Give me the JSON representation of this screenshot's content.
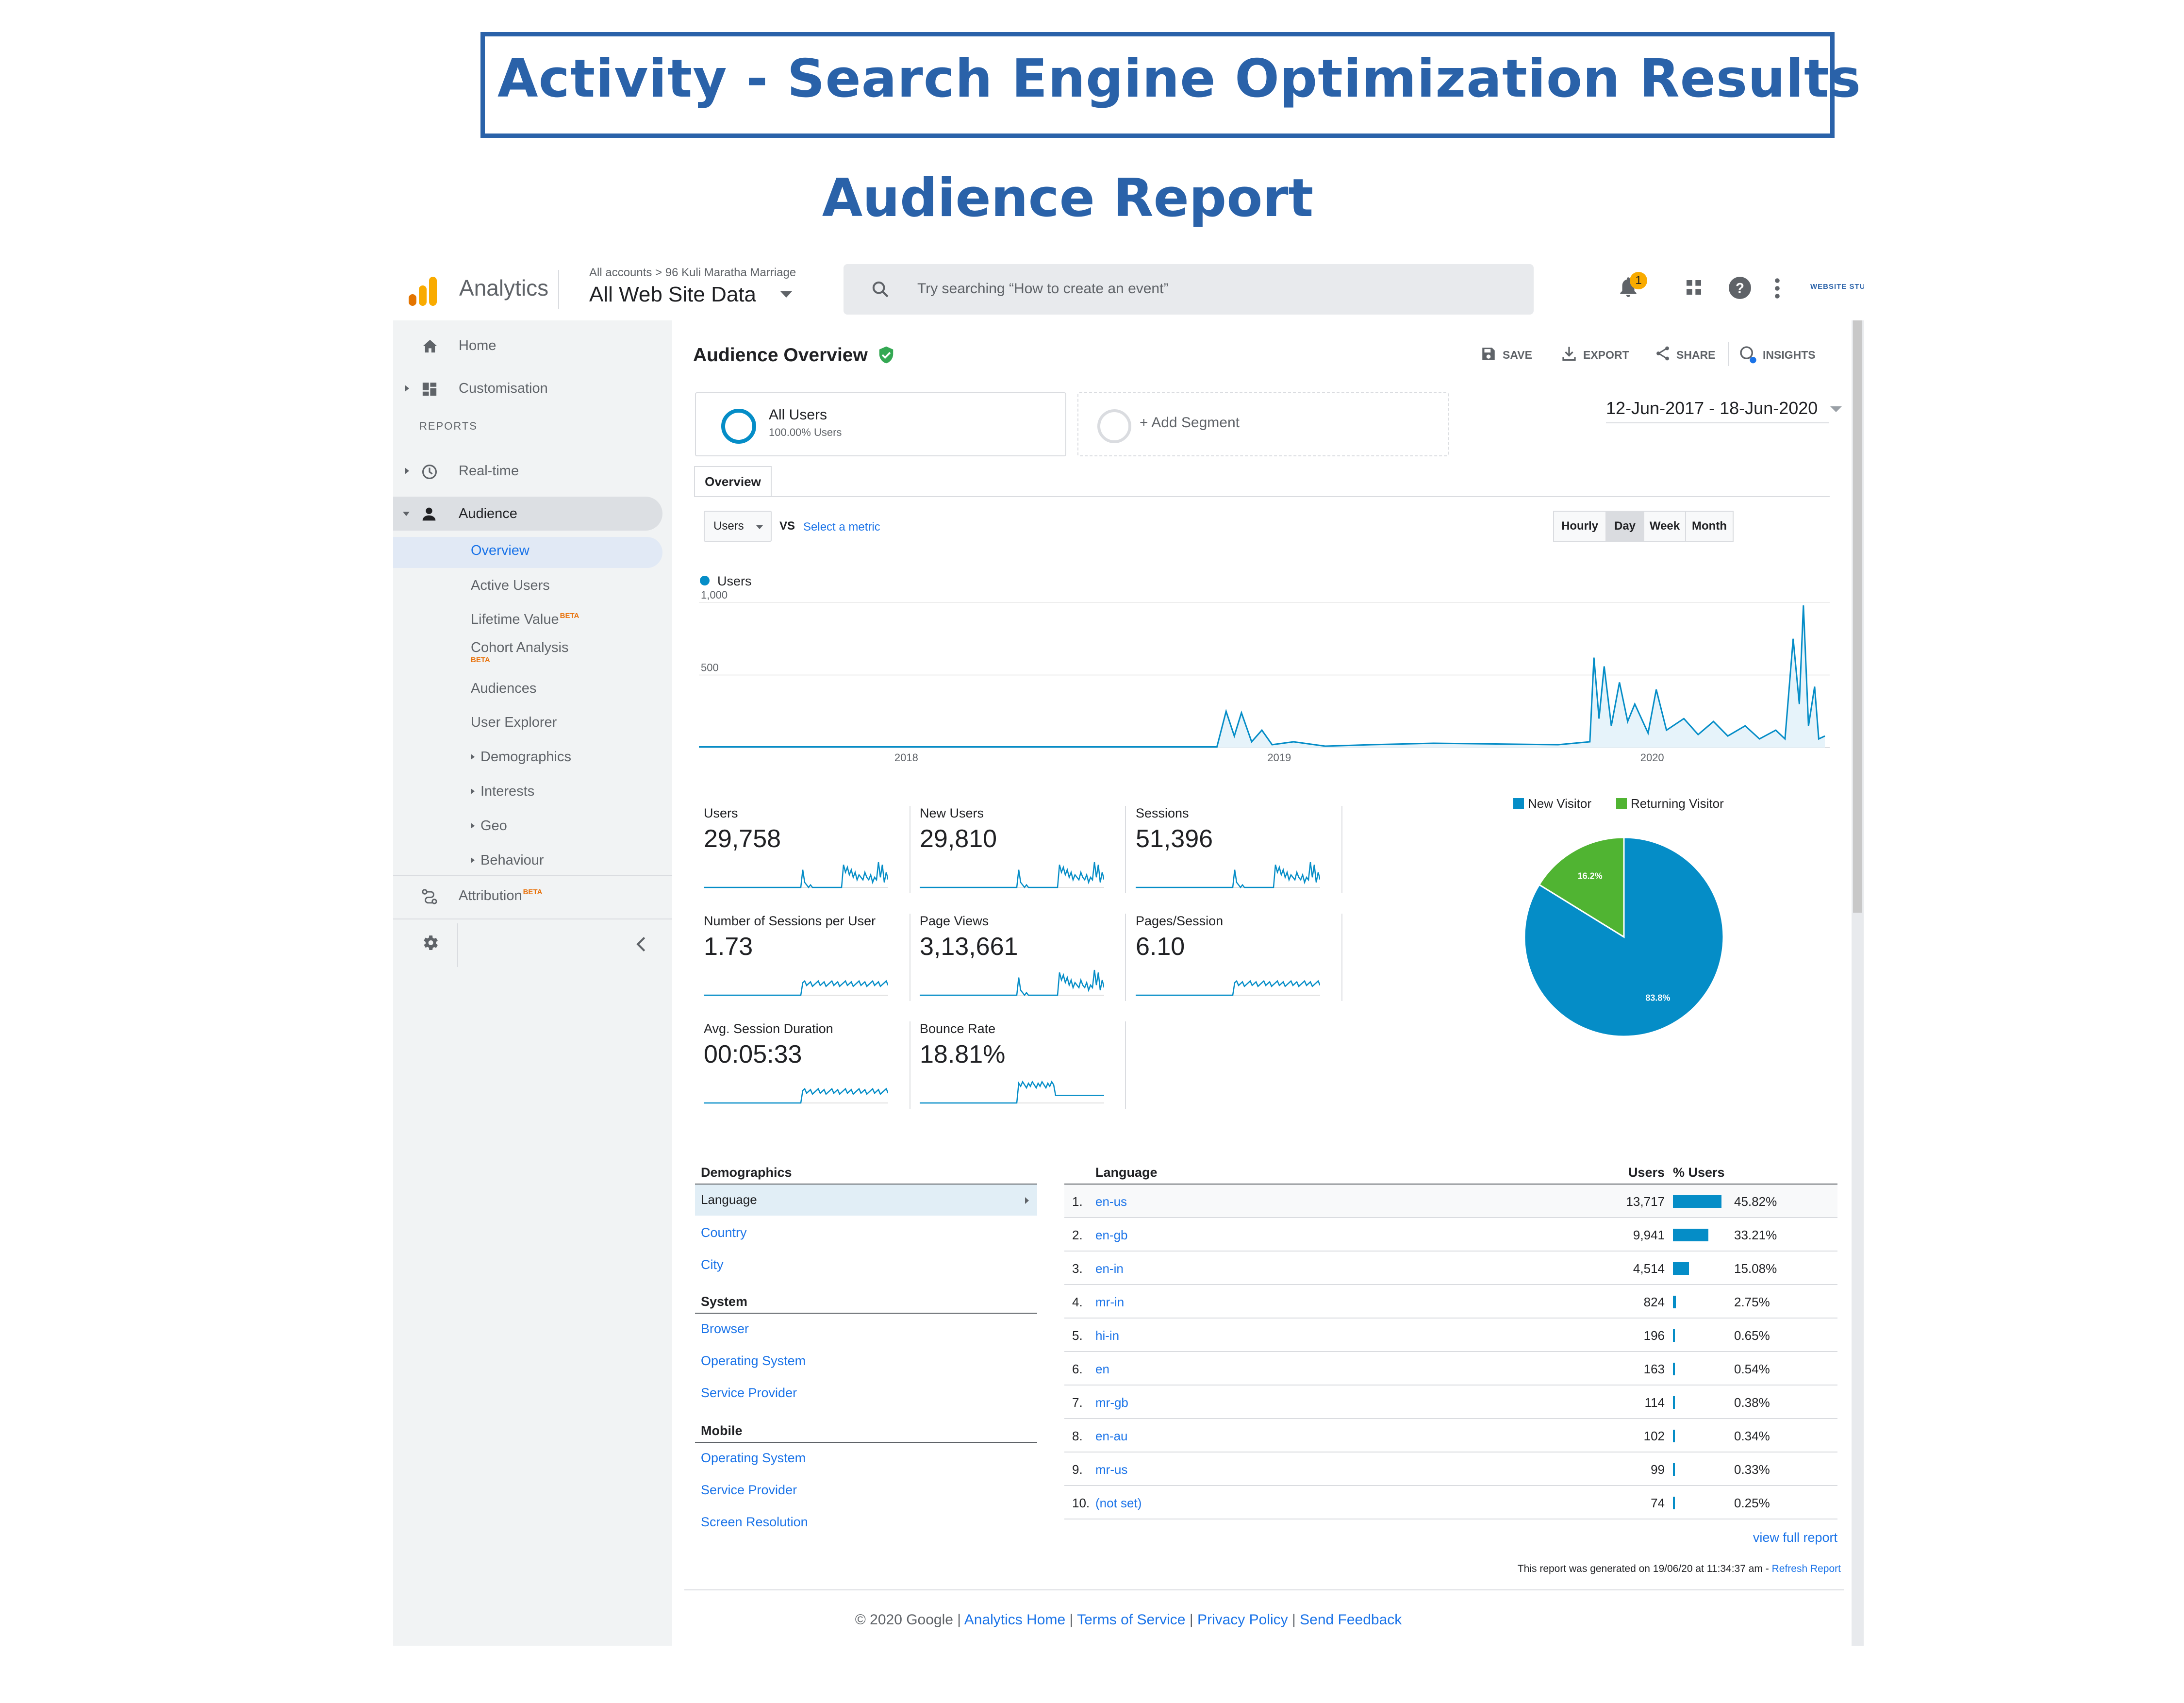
{
  "page": {
    "title": "Activity - Search Engine Optimization Results",
    "subtitle": "Audience Report"
  },
  "topbar": {
    "app_name": "Analytics",
    "breadcrumb": "All accounts  >  96 Kuli Maratha Marriage",
    "property": "All Web Site Data",
    "search_placeholder": "Try searching “How to create an event”",
    "notification_count": "1",
    "logo_text": "WEBSITE STUDIO",
    "icons": [
      "notifications-icon",
      "apps-grid-icon",
      "help-icon",
      "more-vert-icon"
    ]
  },
  "sidebar": {
    "items": [
      {
        "label": "Home",
        "icon": "home-icon"
      },
      {
        "label": "Customisation",
        "icon": "dashboard-icon"
      },
      {
        "label": "REPORTS"
      },
      {
        "label": "Real-time",
        "icon": "clock-icon"
      },
      {
        "label": "Audience",
        "icon": "person-icon"
      }
    ],
    "audience_sub": [
      {
        "label": "Overview"
      },
      {
        "label": "Active Users"
      },
      {
        "label": "Lifetime Value",
        "beta": "BETA"
      },
      {
        "label": "Cohort Analysis",
        "beta": "BETA"
      },
      {
        "label": "Audiences"
      },
      {
        "label": "User Explorer"
      },
      {
        "label": "Demographics"
      },
      {
        "label": "Interests"
      },
      {
        "label": "Geo"
      },
      {
        "label": "Behaviour"
      }
    ],
    "attribution": {
      "label": "Attribution",
      "beta": "BETA"
    }
  },
  "main": {
    "title": "Audience Overview",
    "actions": {
      "save": "SAVE",
      "export": "EXPORT",
      "share": "SHARE",
      "insights": "INSIGHTS"
    },
    "segments": {
      "all_users": "All Users",
      "all_users_pct": "100.00% Users",
      "add_segment": "+ Add Segment"
    },
    "date_range": "12-Jun-2017 - 18-Jun-2020",
    "tab": "Overview",
    "metric_select": "Users",
    "vs": "VS",
    "select_metric": "Select a metric",
    "granularity": [
      "Hourly",
      "Day",
      "Week",
      "Month"
    ],
    "granularity_selected": "Day"
  },
  "scorecards": [
    {
      "label": "Users",
      "value": "29,758"
    },
    {
      "label": "New Users",
      "value": "29,810"
    },
    {
      "label": "Sessions",
      "value": "51,396"
    },
    {
      "label": "Number of Sessions per User",
      "value": "1.73"
    },
    {
      "label": "Page Views",
      "value": "3,13,661"
    },
    {
      "label": "Pages/Session",
      "value": "6.10"
    },
    {
      "label": "Avg. Session Duration",
      "value": "00:05:33"
    },
    {
      "label": "Bounce Rate",
      "value": "18.81%"
    }
  ],
  "chart_data": [
    {
      "type": "line",
      "series": [
        {
          "name": "Users",
          "color": "#058dc7"
        }
      ],
      "x_ticks": [
        "2018",
        "2019",
        "2020"
      ],
      "y_ticks": [
        "1,000",
        "500"
      ],
      "ylim": [
        0,
        1000
      ],
      "points": [
        [
          "2017-06-12",
          5
        ],
        [
          "2018-06-01",
          5
        ],
        [
          "2018-11-01",
          5
        ],
        [
          "2018-11-10",
          250
        ],
        [
          "2018-11-18",
          80
        ],
        [
          "2018-11-25",
          240
        ],
        [
          "2018-12-05",
          40
        ],
        [
          "2018-12-15",
          120
        ],
        [
          "2018-12-25",
          20
        ],
        [
          "2019-01-15",
          40
        ],
        [
          "2019-02-15",
          10
        ],
        [
          "2019-04-01",
          20
        ],
        [
          "2019-06-01",
          30
        ],
        [
          "2019-08-01",
          25
        ],
        [
          "2019-10-01",
          20
        ],
        [
          "2019-11-01",
          40
        ],
        [
          "2019-11-05",
          620
        ],
        [
          "2019-11-10",
          200
        ],
        [
          "2019-11-15",
          560
        ],
        [
          "2019-11-22",
          150
        ],
        [
          "2019-11-30",
          450
        ],
        [
          "2019-12-08",
          180
        ],
        [
          "2019-12-15",
          300
        ],
        [
          "2019-12-28",
          100
        ],
        [
          "2020-01-05",
          400
        ],
        [
          "2020-01-15",
          120
        ],
        [
          "2020-02-01",
          200
        ],
        [
          "2020-02-15",
          90
        ],
        [
          "2020-03-01",
          180
        ],
        [
          "2020-03-15",
          80
        ],
        [
          "2020-04-01",
          150
        ],
        [
          "2020-04-15",
          60
        ],
        [
          "2020-05-01",
          120
        ],
        [
          "2020-05-10",
          60
        ],
        [
          "2020-05-18",
          750
        ],
        [
          "2020-05-24",
          300
        ],
        [
          "2020-05-28",
          980
        ],
        [
          "2020-06-02",
          150
        ],
        [
          "2020-06-08",
          420
        ],
        [
          "2020-06-12",
          60
        ],
        [
          "2020-06-18",
          80
        ]
      ]
    },
    {
      "type": "pie",
      "legend": [
        "New Visitor",
        "Returning Visitor"
      ],
      "values": [
        83.8,
        16.2
      ],
      "labels": [
        "83.8%",
        "16.2%"
      ],
      "colors": [
        "#058dc7",
        "#50b432"
      ]
    }
  ],
  "demographics": {
    "groups": [
      {
        "title": "Demographics",
        "items": [
          "Language",
          "Country",
          "City"
        ]
      },
      {
        "title": "System",
        "items": [
          "Browser",
          "Operating System",
          "Service Provider"
        ]
      },
      {
        "title": "Mobile",
        "items": [
          "Operating System",
          "Service Provider",
          "Screen Resolution"
        ]
      }
    ]
  },
  "language_table": {
    "headers": {
      "language": "Language",
      "users": "Users",
      "pct": "% Users"
    },
    "rows": [
      {
        "rank": "1.",
        "lang": "en-us",
        "users": "13,717",
        "pct": "45.82%",
        "share": 45.82
      },
      {
        "rank": "2.",
        "lang": "en-gb",
        "users": "9,941",
        "pct": "33.21%",
        "share": 33.21
      },
      {
        "rank": "3.",
        "lang": "en-in",
        "users": "4,514",
        "pct": "15.08%",
        "share": 15.08
      },
      {
        "rank": "4.",
        "lang": "mr-in",
        "users": "824",
        "pct": "2.75%",
        "share": 2.75
      },
      {
        "rank": "5.",
        "lang": "hi-in",
        "users": "196",
        "pct": "0.65%",
        "share": 0.65
      },
      {
        "rank": "6.",
        "lang": "en",
        "users": "163",
        "pct": "0.54%",
        "share": 0.54
      },
      {
        "rank": "7.",
        "lang": "mr-gb",
        "users": "114",
        "pct": "0.38%",
        "share": 0.38
      },
      {
        "rank": "8.",
        "lang": "en-au",
        "users": "102",
        "pct": "0.34%",
        "share": 0.34
      },
      {
        "rank": "9.",
        "lang": "mr-us",
        "users": "99",
        "pct": "0.33%",
        "share": 0.33
      },
      {
        "rank": "10.",
        "lang": "(not set)",
        "users": "74",
        "pct": "0.25%",
        "share": 0.25
      }
    ],
    "view_full": "view full report",
    "generated": "This report was generated on 19/06/20 at 11:34:37 am - ",
    "refresh": "Refresh Report"
  },
  "footer": {
    "copyright": "© 2020 Google | ",
    "links": [
      "Analytics Home",
      "Terms of Service",
      "Privacy Policy",
      "Send Feedback"
    ]
  }
}
